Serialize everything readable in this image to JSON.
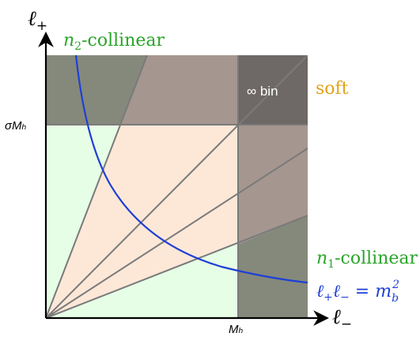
{
  "axes": {
    "y_label_base": "ℓ",
    "y_label_sub": "+",
    "x_label_base": "ℓ",
    "x_label_sub": "−",
    "y_tick": "σMₕ",
    "x_tick": "Mₕ"
  },
  "regions": {
    "n2_collinear_prefix": "n",
    "n2_collinear_sub": "2",
    "n2_collinear_suffix": "-collinear",
    "n1_collinear_prefix": "n",
    "n1_collinear_sub": "1",
    "n1_collinear_suffix": "-collinear",
    "soft": "soft",
    "infinity_bin": "∞ bin"
  },
  "curve_label": {
    "lhs_a": "ℓ",
    "lhs_a_sub": "+",
    "lhs_b": "ℓ",
    "lhs_b_sub": "−",
    "eq": " = m",
    "rhs_sub": "b",
    "rhs_sup": "2"
  },
  "colors": {
    "soft_fill": "#fde8d8",
    "collinear_fill": "#e6fde6",
    "grey_band": "#8c7f7a",
    "corner_dark": "#6e6866",
    "collinear_text": "#2aa52a",
    "soft_text": "#e0a21a",
    "curve": "#1f3fd6",
    "ray": "#7a7a7a",
    "axis": "#000000"
  }
}
